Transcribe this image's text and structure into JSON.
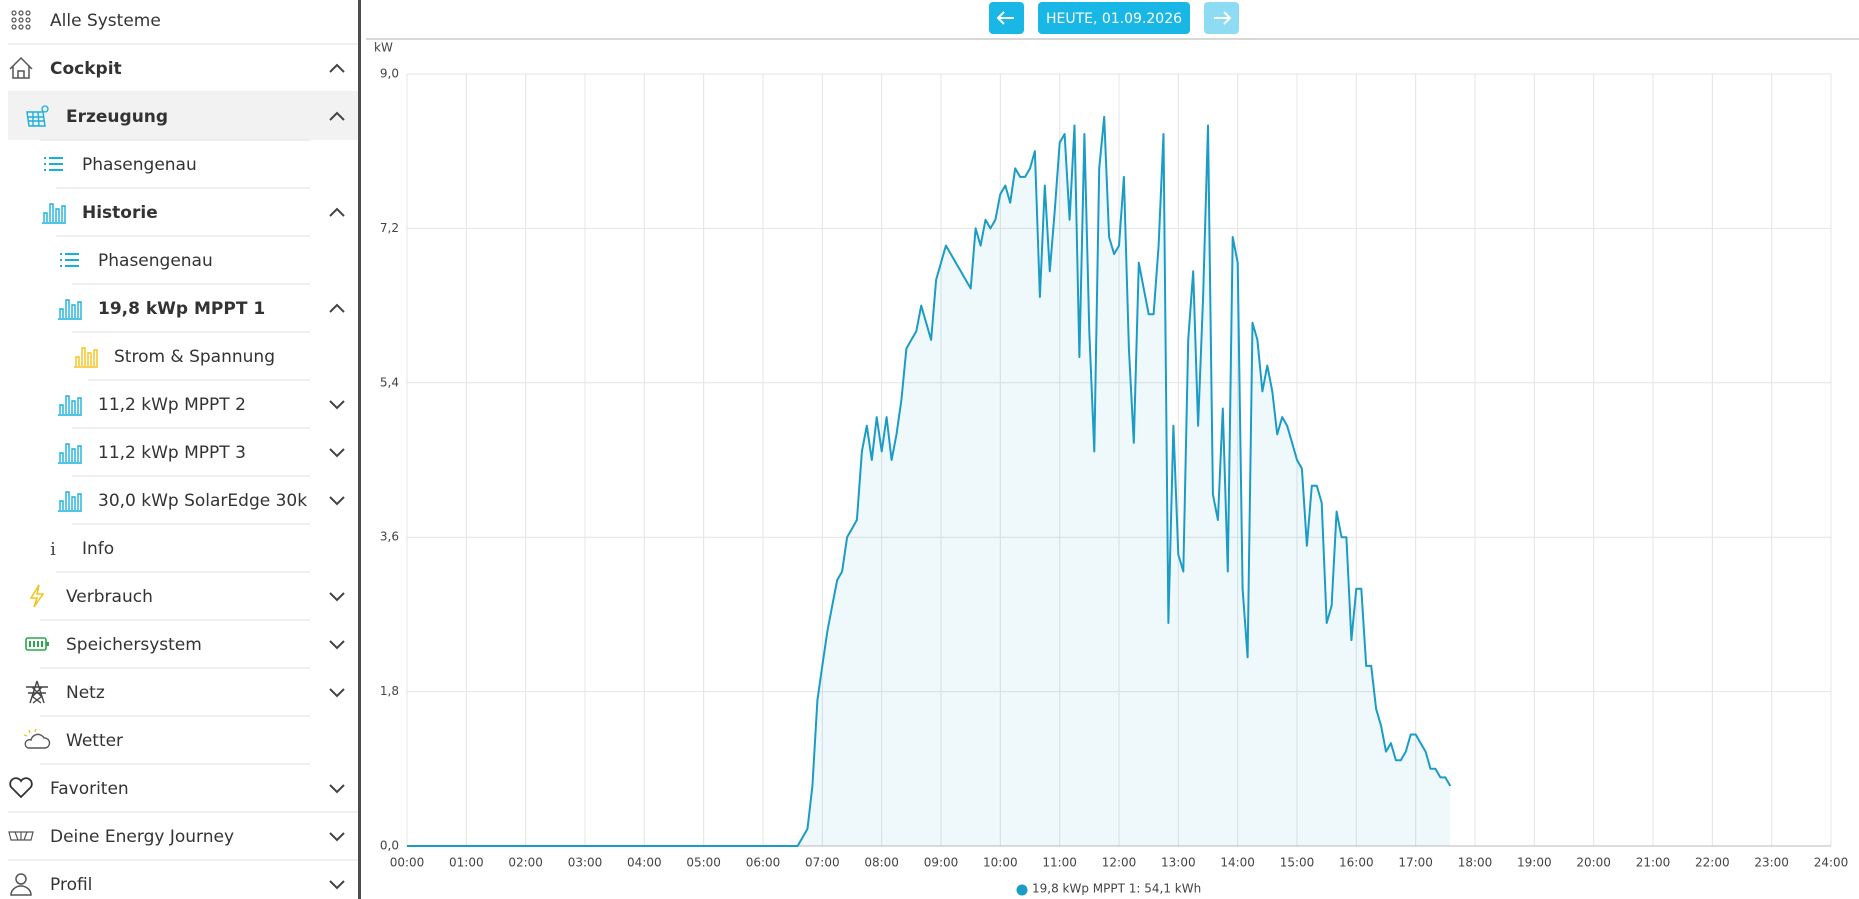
{
  "sidebar": {
    "items": [
      "Alle Systeme",
      "Cockpit",
      "Erzeugung",
      "Phasengenau",
      "Historie",
      "Phasengenau",
      "19,8 kWp MPPT 1",
      "Strom & Spannung",
      "11,2 kWp MPPT 2",
      "11,2 kWp MPPT 3",
      "30,0 kWp SolarEdge 30k",
      "Info",
      "Verbrauch",
      "Speichersystem",
      "Netz",
      "Wetter",
      "Favoriten",
      "Deine Energy Journey",
      "Profil"
    ]
  },
  "toolbar": {
    "date": "HEUTE, 01.09.2026"
  },
  "chart_data": {
    "type": "line",
    "y_label": "kW",
    "x": [
      "00:00",
      "06:30",
      "06:35",
      "06:40",
      "06:45",
      "06:50",
      "06:55",
      "07:00",
      "07:05",
      "07:10",
      "07:15",
      "07:20",
      "07:25",
      "07:30",
      "07:35",
      "07:40",
      "07:45",
      "07:50",
      "07:55",
      "08:00",
      "08:05",
      "08:10",
      "08:15",
      "08:20",
      "08:25",
      "08:30",
      "08:35",
      "08:40",
      "08:45",
      "08:50",
      "08:55",
      "09:00",
      "09:05",
      "09:10",
      "09:15",
      "09:20",
      "09:25",
      "09:30",
      "09:35",
      "09:40",
      "09:45",
      "09:50",
      "09:55",
      "10:00",
      "10:05",
      "10:10",
      "10:15",
      "10:20",
      "10:25",
      "10:30",
      "10:35",
      "10:40",
      "10:45",
      "10:50",
      "10:55",
      "11:00",
      "11:05",
      "11:10",
      "11:15",
      "11:20",
      "11:25",
      "11:30",
      "11:35",
      "11:40",
      "11:45",
      "11:50",
      "11:55",
      "12:00",
      "12:05",
      "12:10",
      "12:15",
      "12:20",
      "12:25",
      "12:30",
      "12:35",
      "12:40",
      "12:45",
      "12:50",
      "12:55",
      "13:00",
      "13:05",
      "13:10",
      "13:15",
      "13:20",
      "13:25",
      "13:30",
      "13:35",
      "13:40",
      "13:45",
      "13:50",
      "13:55",
      "14:00",
      "14:05",
      "14:10",
      "14:15",
      "14:20",
      "14:25",
      "14:30",
      "14:35",
      "14:40",
      "14:45",
      "14:50",
      "14:55",
      "15:00",
      "15:05",
      "15:10",
      "15:15",
      "15:20",
      "15:25",
      "15:30",
      "15:35",
      "15:40",
      "15:45",
      "15:50",
      "15:55",
      "16:00",
      "16:05",
      "16:10",
      "16:15",
      "16:20",
      "16:25",
      "16:30",
      "16:35",
      "16:40",
      "16:45",
      "16:50",
      "16:55",
      "17:00",
      "17:05",
      "17:10",
      "17:15",
      "17:20",
      "17:25",
      "17:30",
      "17:35"
    ],
    "series": [
      {
        "name": "19,8 kWp MPPT 1: 54,1 kWh",
        "color": "#1a9cc6",
        "values": [
          0,
          0,
          0.0,
          0.1,
          0.2,
          0.7,
          1.7,
          2.1,
          2.5,
          2.8,
          3.1,
          3.2,
          3.6,
          3.7,
          3.8,
          4.6,
          4.9,
          4.5,
          5.0,
          4.6,
          5.0,
          4.5,
          4.8,
          5.2,
          5.8,
          5.9,
          6.0,
          6.3,
          6.1,
          5.9,
          6.6,
          6.8,
          7.0,
          6.9,
          6.8,
          6.7,
          6.6,
          6.5,
          7.2,
          7.0,
          7.3,
          7.2,
          7.3,
          7.6,
          7.7,
          7.5,
          7.9,
          7.8,
          7.8,
          7.9,
          8.1,
          6.4,
          7.7,
          6.7,
          7.4,
          8.2,
          8.3,
          7.3,
          8.4,
          5.7,
          8.3,
          6.0,
          4.6,
          7.9,
          8.5,
          7.1,
          6.9,
          7.0,
          7.8,
          5.8,
          4.7,
          6.8,
          6.5,
          6.2,
          6.2,
          7.0,
          8.3,
          2.6,
          4.9,
          3.4,
          3.2,
          5.9,
          6.7,
          4.9,
          6.4,
          8.4,
          4.1,
          3.8,
          5.1,
          3.2,
          7.1,
          6.8,
          3.0,
          2.2,
          6.1,
          5.9,
          5.3,
          5.6,
          5.3,
          4.8,
          5.0,
          4.9,
          4.7,
          4.5,
          4.4,
          3.5,
          4.2,
          4.2,
          4.0,
          2.6,
          2.8,
          3.9,
          3.6,
          3.6,
          2.4,
          3.0,
          3.0,
          2.1,
          2.1,
          1.6,
          1.4,
          1.1,
          1.2,
          1.0,
          1.0,
          1.1,
          1.3,
          1.3,
          1.2,
          1.1,
          0.9,
          0.9,
          0.8,
          0.8,
          0.7
        ]
      }
    ],
    "xlim": [
      "00:00",
      "24:00"
    ],
    "xticks": [
      "00:00",
      "01:00",
      "02:00",
      "03:00",
      "04:00",
      "05:00",
      "06:00",
      "07:00",
      "08:00",
      "09:00",
      "10:00",
      "11:00",
      "12:00",
      "13:00",
      "14:00",
      "15:00",
      "16:00",
      "17:00",
      "18:00",
      "19:00",
      "20:00",
      "21:00",
      "22:00",
      "23:00",
      "24:00"
    ],
    "ylim": [
      0,
      9
    ],
    "yticks": [
      {
        "value": 0,
        "label": "0,0"
      },
      {
        "value": 1.8,
        "label": "1,8"
      },
      {
        "value": 3.6,
        "label": "3,6"
      },
      {
        "value": 5.4,
        "label": "5,4"
      },
      {
        "value": 7.2,
        "label": "7,2"
      },
      {
        "value": 9,
        "label": "9,0"
      }
    ],
    "grid": true,
    "fill": true
  }
}
